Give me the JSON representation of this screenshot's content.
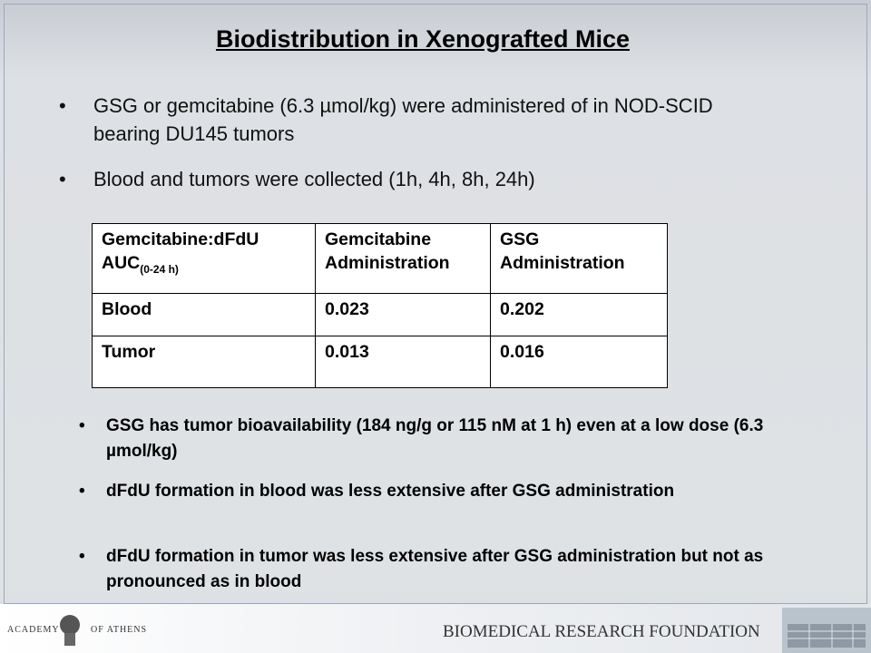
{
  "title": "Biodistribution in Xenografted Mice",
  "bullets": [
    "GSG or gemcitabine (6.3 µmol/kg) were administered of in NOD-SCID bearing DU145 tumors",
    "Blood and tumors were collected (1h, 4h, 8h, 24h)"
  ],
  "table": {
    "header": [
      {
        "text": "Gemcitabine:dFdU AUC",
        "sub": "(0-24 h)"
      },
      {
        "text": "Gemcitabine Administration"
      },
      {
        "text": "GSG Administration"
      }
    ],
    "rows": [
      [
        "Blood",
        "0.023",
        "0.202"
      ],
      [
        "Tumor",
        "0.013",
        "0.016"
      ]
    ]
  },
  "findings": [
    "GSG has tumor bioavailability (184 ng/g or 115 nM at 1 h) even at a low dose (6.3 µmol/kg)",
    "dFdU formation in blood was less extensive after GSG administration",
    "dFdU formation in tumor was less extensive after GSG administration but not as pronounced as in blood"
  ],
  "footer": {
    "academy_left": "ACADEMY",
    "academy_right": "OF ATHENS",
    "foundation": "BIOMEDICAL RESEARCH FOUNDATION"
  }
}
